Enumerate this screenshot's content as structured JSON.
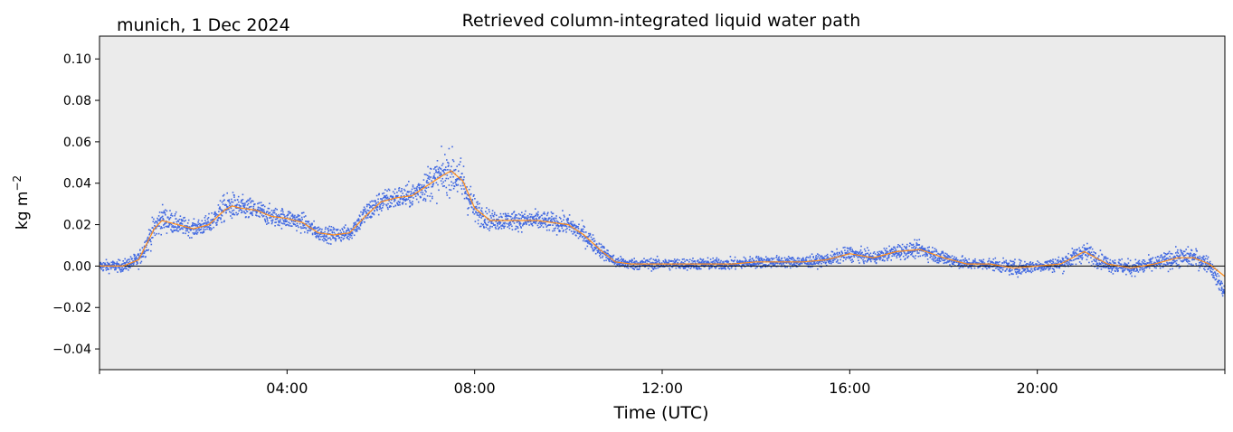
{
  "chart_data": {
    "type": "scatter",
    "location_label": "munich, 1 Dec 2024",
    "title": "Retrieved column-integrated liquid water path",
    "xlabel": "Time (UTC)",
    "ylabel": "kg m",
    "ylabel_superscript": "−2",
    "xlim": [
      "00:00",
      "24:00"
    ],
    "ylim": [
      -0.05,
      0.111
    ],
    "x_ticks": [
      {
        "time": "00:00",
        "label": ""
      },
      {
        "time": "04:00",
        "label": "04:00"
      },
      {
        "time": "08:00",
        "label": "08:00"
      },
      {
        "time": "12:00",
        "label": "12:00"
      },
      {
        "time": "16:00",
        "label": "16:00"
      },
      {
        "time": "20:00",
        "label": "20:00"
      },
      {
        "time": "24:00",
        "label": ""
      }
    ],
    "y_ticks": [
      {
        "value": -0.04,
        "label": "−0.04"
      },
      {
        "value": -0.02,
        "label": "−0.02"
      },
      {
        "value": 0.0,
        "label": "0.00"
      },
      {
        "value": 0.02,
        "label": "0.02"
      },
      {
        "value": 0.04,
        "label": "0.04"
      },
      {
        "value": 0.06,
        "label": "0.06"
      },
      {
        "value": 0.08,
        "label": "0.08"
      },
      {
        "value": 0.1,
        "label": "0.10"
      }
    ],
    "zero_line": 0.0,
    "plot_background": "#ebebeb",
    "grid": false,
    "series": [
      {
        "kind": "scatter",
        "color": "#4169e1",
        "x": [
          "00:00",
          "00:30",
          "00:50",
          "01:10",
          "01:20",
          "01:40",
          "02:00",
          "02:20",
          "02:40",
          "02:50",
          "03:00",
          "03:20",
          "03:40",
          "04:00",
          "04:20",
          "04:40",
          "05:00",
          "05:20",
          "05:40",
          "06:00",
          "06:20",
          "06:40",
          "07:00",
          "07:20",
          "07:30",
          "07:45",
          "08:00",
          "08:20",
          "08:40",
          "09:00",
          "09:20",
          "09:40",
          "10:00",
          "10:20",
          "10:40",
          "11:00",
          "11:20",
          "11:40",
          "12:00",
          "12:30",
          "13:00",
          "13:30",
          "14:00",
          "14:30",
          "15:00",
          "15:30",
          "16:00",
          "16:30",
          "17:00",
          "17:30",
          "18:00",
          "18:30",
          "19:00",
          "19:30",
          "20:00",
          "20:30",
          "21:00",
          "21:30",
          "22:00",
          "22:30",
          "23:00",
          "23:20",
          "23:40",
          "24:00"
        ],
        "y": [
          0.0,
          0.0,
          0.003,
          0.018,
          0.023,
          0.02,
          0.018,
          0.02,
          0.028,
          0.029,
          0.028,
          0.027,
          0.024,
          0.023,
          0.021,
          0.016,
          0.015,
          0.016,
          0.025,
          0.031,
          0.033,
          0.034,
          0.04,
          0.044,
          0.046,
          0.04,
          0.027,
          0.022,
          0.022,
          0.022,
          0.022,
          0.021,
          0.02,
          0.015,
          0.008,
          0.002,
          0.001,
          0.001,
          0.001,
          0.001,
          0.001,
          0.001,
          0.002,
          0.002,
          0.002,
          0.003,
          0.006,
          0.004,
          0.007,
          0.008,
          0.004,
          0.001,
          0.001,
          -0.001,
          0.0,
          0.001,
          0.007,
          0.001,
          -0.001,
          0.001,
          0.004,
          0.004,
          0.001,
          -0.013
        ],
        "spread": [
          0.003,
          0.003,
          0.004,
          0.007,
          0.007,
          0.005,
          0.004,
          0.005,
          0.007,
          0.007,
          0.006,
          0.006,
          0.005,
          0.005,
          0.005,
          0.004,
          0.004,
          0.004,
          0.006,
          0.006,
          0.006,
          0.006,
          0.009,
          0.011,
          0.011,
          0.012,
          0.007,
          0.005,
          0.005,
          0.005,
          0.005,
          0.005,
          0.005,
          0.005,
          0.004,
          0.003,
          0.003,
          0.003,
          0.003,
          0.003,
          0.003,
          0.003,
          0.003,
          0.003,
          0.003,
          0.003,
          0.004,
          0.003,
          0.004,
          0.004,
          0.004,
          0.003,
          0.003,
          0.004,
          0.003,
          0.004,
          0.005,
          0.004,
          0.004,
          0.004,
          0.005,
          0.005,
          0.004,
          0.004
        ]
      },
      {
        "kind": "line",
        "color": "#ff8c1a",
        "x": [
          "00:00",
          "00:30",
          "00:50",
          "01:10",
          "01:20",
          "01:40",
          "02:00",
          "02:20",
          "02:40",
          "02:50",
          "03:00",
          "03:20",
          "03:40",
          "04:00",
          "04:20",
          "04:40",
          "05:00",
          "05:20",
          "05:40",
          "06:00",
          "06:20",
          "06:40",
          "07:00",
          "07:20",
          "07:30",
          "07:45",
          "08:00",
          "08:20",
          "08:40",
          "09:00",
          "09:20",
          "09:40",
          "10:00",
          "10:20",
          "10:40",
          "11:00",
          "11:20",
          "11:40",
          "12:00",
          "12:30",
          "13:00",
          "13:30",
          "14:00",
          "14:30",
          "15:00",
          "15:30",
          "16:00",
          "16:30",
          "17:00",
          "17:30",
          "18:00",
          "18:30",
          "19:00",
          "19:30",
          "20:00",
          "20:30",
          "21:00",
          "21:30",
          "22:00",
          "22:30",
          "23:00",
          "23:20",
          "23:40",
          "24:00"
        ],
        "y": [
          0.0,
          0.0,
          0.003,
          0.018,
          0.022,
          0.02,
          0.018,
          0.02,
          0.027,
          0.029,
          0.028,
          0.027,
          0.024,
          0.023,
          0.021,
          0.016,
          0.015,
          0.016,
          0.024,
          0.031,
          0.033,
          0.034,
          0.039,
          0.044,
          0.046,
          0.041,
          0.028,
          0.022,
          0.022,
          0.022,
          0.022,
          0.021,
          0.02,
          0.015,
          0.008,
          0.002,
          0.001,
          0.001,
          0.001,
          0.001,
          0.001,
          0.001,
          0.002,
          0.002,
          0.002,
          0.003,
          0.006,
          0.004,
          0.007,
          0.008,
          0.004,
          0.001,
          0.001,
          -0.001,
          0.0,
          0.001,
          0.007,
          0.001,
          -0.001,
          0.001,
          0.004,
          0.004,
          0.001,
          -0.005
        ]
      }
    ]
  }
}
